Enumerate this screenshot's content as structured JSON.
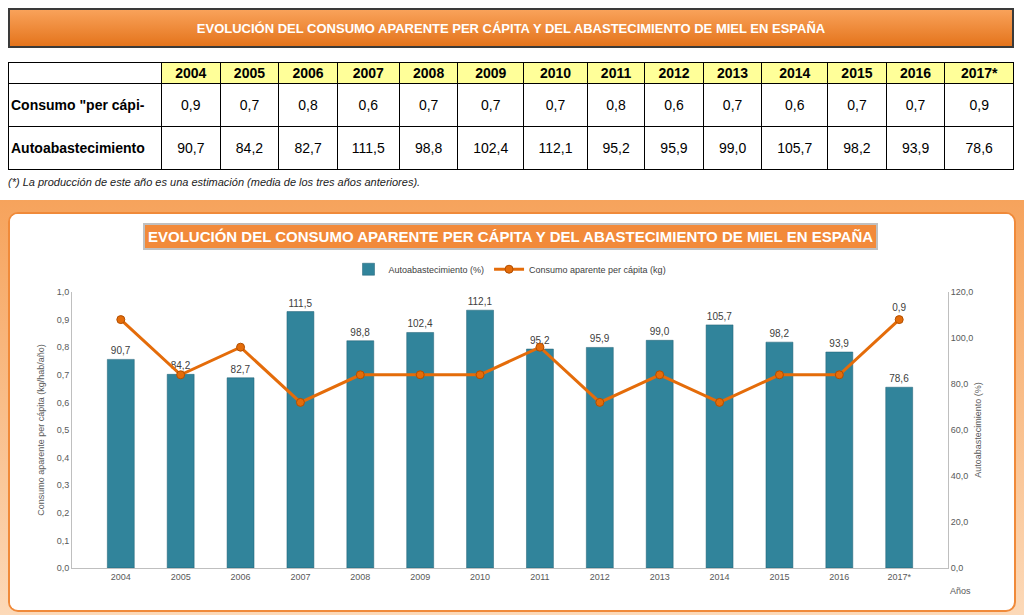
{
  "header": {
    "title": "EVOLUCIÓN DEL CONSUMO APARENTE PER CÁPITA Y DEL ABASTECIMIENTO DE MIEL EN ESPAÑA"
  },
  "table": {
    "columns": [
      "2004",
      "2005",
      "2006",
      "2007",
      "2008",
      "2009",
      "2010",
      "2011",
      "2012",
      "2013",
      "2014",
      "2015",
      "2016",
      "2017*"
    ],
    "rows": [
      {
        "label": "Consumo \"per cápi-",
        "cells": [
          "0,9",
          "0,7",
          "0,8",
          "0,6",
          "0,7",
          "0,7",
          "0,7",
          "0,8",
          "0,6",
          "0,7",
          "0,6",
          "0,7",
          "0,7",
          "0,9"
        ]
      },
      {
        "label": "Autoabastecimiento",
        "cells": [
          "90,7",
          "84,2",
          "82,7",
          "111,5",
          "98,8",
          "102,4",
          "112,1",
          "95,2",
          "95,9",
          "99,0",
          "105,7",
          "98,2",
          "93,9",
          "78,6"
        ]
      }
    ]
  },
  "note": "(*) La producción de este año es una estimación (media de los tres años anteriores).",
  "chart_data": {
    "type": "bar",
    "title": "EVOLUCIÓN DEL CONSUMO APARENTE PER CÁPITA Y DEL ABASTECIMIENTO DE MIEL EN ESPAÑA",
    "categories": [
      "2004",
      "2005",
      "2006",
      "2007",
      "2008",
      "2009",
      "2010",
      "2011",
      "2012",
      "2013",
      "2014",
      "2015",
      "2016",
      "2017*"
    ],
    "x_label": "Años",
    "y_label": "Consumo aparente per cápita (kg/hab/año)",
    "y2_label": "Autoabastecimiento (%)",
    "ylim": [
      0,
      1
    ],
    "yticks": [
      {
        "value": 0,
        "label": "0,0"
      },
      {
        "value": 0.1,
        "label": "0,1"
      },
      {
        "value": 0.2,
        "label": "0,2"
      },
      {
        "value": 0.3,
        "label": "0,3"
      },
      {
        "value": 0.4,
        "label": "0,4"
      },
      {
        "value": 0.5,
        "label": "0,5"
      },
      {
        "value": 0.6,
        "label": "0,6"
      },
      {
        "value": 0.7,
        "label": "0,7"
      },
      {
        "value": 0.8,
        "label": "0,8"
      },
      {
        "value": 0.9,
        "label": "0,9"
      },
      {
        "value": 1,
        "label": "1,0"
      }
    ],
    "y2lim": [
      0,
      120
    ],
    "y2ticks": [
      {
        "value": 0,
        "label": "0,0"
      },
      {
        "value": 20,
        "label": "20,0"
      },
      {
        "value": 40,
        "label": "40,0"
      },
      {
        "value": 60,
        "label": "60,0"
      },
      {
        "value": 80,
        "label": "80,0"
      },
      {
        "value": 100,
        "label": "100,0"
      },
      {
        "value": 120,
        "label": "120,0"
      }
    ],
    "grid": false,
    "legend": "top",
    "data_labels": true,
    "series": [
      {
        "name": "Autoabastecimiento (%)",
        "type": "bar",
        "axis": "y2",
        "color": "#31849b",
        "values": [
          90.7,
          84.2,
          82.7,
          111.5,
          98.8,
          102.4,
          112.1,
          95.2,
          95.9,
          99.0,
          105.7,
          98.2,
          93.9,
          78.6
        ],
        "value_labels": [
          "90,7",
          "84,2",
          "82,7",
          "111,5",
          "98,8",
          "102,4",
          "112,1",
          "95,2",
          "95,9",
          "99,0",
          "105,7",
          "98,2",
          "93,9",
          "78,6"
        ]
      },
      {
        "name": "Consumo aparente per cápita (kg)",
        "type": "line",
        "color": "#e46c0a",
        "marker": "circle",
        "values": [
          0.9,
          0.7,
          0.8,
          0.6,
          0.7,
          0.7,
          0.7,
          0.8,
          0.6,
          0.7,
          0.6,
          0.7,
          0.7,
          0.9
        ],
        "value_labels": [
          null,
          null,
          null,
          null,
          null,
          null,
          null,
          null,
          null,
          null,
          null,
          null,
          null,
          "0,9"
        ]
      }
    ]
  }
}
